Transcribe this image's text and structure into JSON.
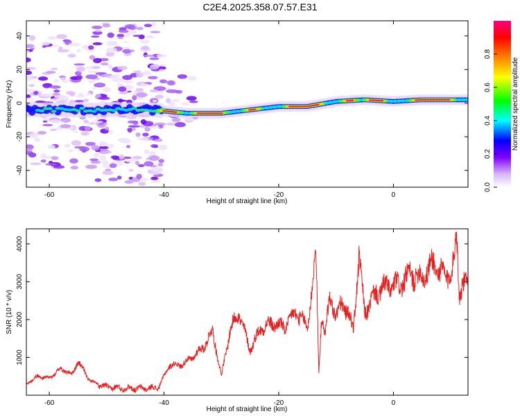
{
  "figure_title": "C2E4.2025.358.07.57.E31",
  "chart_data": [
    {
      "type": "heatmap",
      "title": "C2E4.2025.358.07.57.E31",
      "xlabel": "Height of straight line (km)",
      "ylabel": "Frequency (Hz)",
      "xlim": [
        -64,
        13
      ],
      "ylim": [
        -50,
        49
      ],
      "x_ticks": [
        -60,
        -40,
        -20,
        0
      ],
      "y_ticks": [
        -40,
        -20,
        0,
        20,
        40
      ],
      "colorbar": {
        "label": "Normalized spectral amplitude",
        "range": [
          0,
          1
        ],
        "ticks": [
          0.0,
          0.2,
          0.4,
          0.6,
          0.8
        ],
        "colors": [
          "#ffffff",
          "#d8b4f8",
          "#8000ff",
          "#0000ff",
          "#00ffff",
          "#00ff00",
          "#ffff00",
          "#ff8000",
          "#ff0000",
          "#ff0080"
        ]
      },
      "ridge": [
        {
          "x": -64,
          "y": -4
        },
        {
          "x": -55,
          "y": -4
        },
        {
          "x": -48,
          "y": -4
        },
        {
          "x": -42,
          "y": -4
        },
        {
          "x": -36,
          "y": -6
        },
        {
          "x": -30,
          "y": -6
        },
        {
          "x": -25,
          "y": -4
        },
        {
          "x": -20,
          "y": -2
        },
        {
          "x": -15,
          "y": -2
        },
        {
          "x": -10,
          "y": 1
        },
        {
          "x": -5,
          "y": 2
        },
        {
          "x": 0,
          "y": 1
        },
        {
          "x": 5,
          "y": 2
        },
        {
          "x": 13,
          "y": 2
        }
      ]
    },
    {
      "type": "line",
      "xlabel": "Height of straight line (km)",
      "ylabel": "SNR (10 * v/v)",
      "xlim": [
        -64,
        13
      ],
      "ylim": [
        0,
        4400
      ],
      "x_ticks": [
        -60,
        -40,
        -20,
        0
      ],
      "y_ticks": [
        1000,
        2000,
        3000,
        4000
      ],
      "series": [
        {
          "name": "SNR",
          "color": "#e82020",
          "x": [
            -64,
            -62,
            -60,
            -58,
            -56,
            -55,
            -53,
            -51,
            -49,
            -47,
            -45,
            -43,
            -41,
            -39,
            -37,
            -35,
            -33,
            -31.5,
            -30,
            -28.5,
            -27,
            -25,
            -23,
            -21,
            -19,
            -17,
            -15,
            -13.5,
            -13,
            -12.5,
            -12,
            -11,
            -10,
            -9,
            -7,
            -6,
            -5,
            -3,
            -1,
            1,
            3,
            5,
            7,
            9,
            10.5,
            11,
            11.5,
            12,
            13
          ],
          "y": [
            300,
            500,
            450,
            700,
            550,
            900,
            400,
            250,
            200,
            180,
            180,
            180,
            200,
            800,
            800,
            1000,
            1300,
            1700,
            500,
            1700,
            2200,
            1200,
            1800,
            1900,
            1800,
            2200,
            1800,
            3700,
            600,
            2200,
            1500,
            2700,
            2000,
            2500,
            1800,
            3600,
            2200,
            2700,
            2900,
            2900,
            3200,
            3100,
            3500,
            3100,
            3400,
            4300,
            2700,
            3000,
            2800
          ]
        }
      ]
    }
  ]
}
